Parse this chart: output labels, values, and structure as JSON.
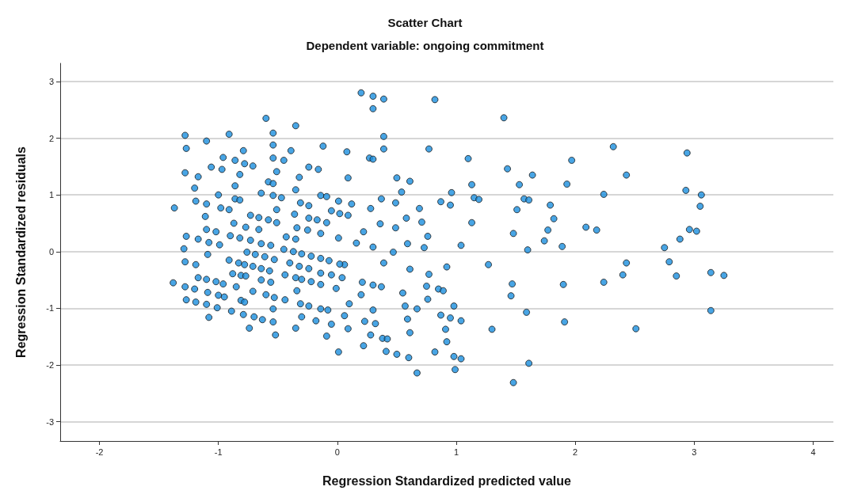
{
  "chart_data": {
    "type": "scatter",
    "title": "Scatter Chart",
    "subtitle": "Dependent variable: ongoing commitment",
    "xlabel": "Regression Standardized predicted value",
    "ylabel": "Regression Standardized residuals",
    "xlim": [
      -2.33,
      4.17
    ],
    "ylim": [
      -3.34,
      3.32
    ],
    "xticks": [
      -2,
      -1,
      0,
      1,
      2,
      3,
      4
    ],
    "yticks": [
      -3,
      -2,
      -1,
      0,
      1,
      2,
      3
    ],
    "grid": "y",
    "marker": "circle",
    "series": [
      {
        "color": "#1a8fde",
        "x": [
          2.32,
          2.94,
          1.97,
          2.43,
          1.93,
          2.24,
          2.93,
          3.06,
          3.05,
          1.79,
          1.82,
          1.77,
          2.09,
          2.18,
          1.89,
          2.96,
          3.02,
          2.88,
          2.75,
          2.43,
          2.79,
          2.4,
          2.85,
          3.14,
          3.25,
          1.9,
          2.24,
          3.14,
          1.91,
          2.51,
          1.74,
          1.4,
          0.2,
          0.3,
          0.39,
          0.3,
          0.82,
          0.39,
          0.39,
          0.08,
          0.27,
          0.3,
          0.77,
          1.1,
          1.43,
          1.64,
          1.53,
          1.13,
          0.09,
          0.5,
          0.61,
          0.54,
          0.96,
          0.37,
          0.49,
          0.87,
          0.95,
          1.15,
          1.19,
          1.57,
          1.61,
          0.12,
          0.28,
          0.69,
          0.09,
          1.51,
          0.36,
          0.58,
          0.71,
          1.13,
          0.49,
          0.22,
          0.76,
          1.48,
          0.16,
          0.3,
          0.59,
          0.73,
          1.04,
          1.6,
          0.47,
          0.39,
          1.27,
          0.92,
          0.61,
          0.06,
          0.77,
          0.21,
          0.3,
          0.37,
          0.75,
          0.85,
          0.89,
          1.47,
          0.2,
          0.55,
          1.46,
          0.76,
          0.1,
          0.3,
          0.57,
          0.67,
          0.98,
          1.59,
          0.06,
          0.23,
          0.32,
          0.59,
          0.87,
          0.95,
          1.04,
          0.09,
          0.28,
          0.61,
          0.91,
          1.3,
          0.22,
          0.38,
          0.42,
          0.92,
          0.41,
          0.5,
          0.6,
          0.82,
          0.98,
          1.04,
          1.61,
          0.67,
          0.99,
          1.48,
          -0.6,
          -0.35,
          -1.28,
          -0.91,
          -1.1,
          -0.54,
          -1.27,
          -0.54,
          -0.79,
          -0.39,
          -0.12,
          -0.96,
          -0.54,
          -0.86,
          -0.78,
          -0.71,
          -1.06,
          -0.97,
          -0.45,
          -0.24,
          -0.16,
          -1.28,
          -1.17,
          -0.82,
          -0.51,
          -0.32,
          -1.2,
          -0.86,
          -0.58,
          -0.54,
          -0.35,
          -1.19,
          -1.1,
          -1.0,
          -0.86,
          -0.82,
          -0.64,
          -0.54,
          -0.47,
          -0.31,
          -0.24,
          -0.14,
          -0.09,
          0.01,
          -1.37,
          -0.98,
          -0.91,
          -0.51,
          -0.05,
          0.02,
          -1.11,
          -0.73,
          -0.66,
          -0.58,
          -0.51,
          -0.36,
          -0.24,
          -0.17,
          -0.09,
          -0.87,
          -1.1,
          -1.02,
          -0.77,
          -0.66,
          -0.34,
          -0.25,
          -0.14,
          -1.27,
          -1.17,
          -1.08,
          -0.99,
          -0.9,
          -0.82,
          -0.73,
          -0.64,
          -0.56,
          -0.43,
          -0.35,
          0.01,
          -1.29,
          -1.09,
          -0.76,
          -0.69,
          -0.61,
          -0.53,
          -0.45,
          -0.37,
          -0.3,
          -0.22,
          -0.14,
          -0.07,
          0.02,
          -1.28,
          -1.19,
          -0.91,
          -0.83,
          -0.78,
          -0.71,
          -0.64,
          -0.57,
          -0.4,
          -0.32,
          -0.24,
          -0.14,
          -0.05,
          0.04,
          -1.38,
          -1.28,
          -1.2,
          -1.17,
          -1.1,
          -1.02,
          -0.96,
          -0.88,
          -0.81,
          -0.77,
          -0.64,
          -0.56,
          -0.44,
          -0.35,
          -0.3,
          -0.22,
          -0.14,
          -0.01,
          -0.85,
          -0.71,
          -0.34,
          -1.27,
          -1.19,
          -1.09,
          -1.0,
          -0.95,
          -1.1,
          -1.01,
          -0.89,
          -0.81,
          -0.78,
          -0.6,
          -0.53,
          -0.44,
          -0.31,
          -0.24,
          -0.14,
          -0.08,
          -1.08,
          -0.79,
          -0.7,
          -0.63,
          -0.54,
          -0.54,
          -0.3,
          -0.18,
          -0.05,
          -0.74,
          -0.35,
          -0.09,
          -0.52,
          0.01
        ],
        "values": [
          1.85,
          1.74,
          1.61,
          1.35,
          1.19,
          1.01,
          1.08,
          1.0,
          0.8,
          0.82,
          0.58,
          0.38,
          0.43,
          0.38,
          0.09,
          0.39,
          0.36,
          0.22,
          0.07,
          -0.2,
          -0.18,
          -0.41,
          -0.43,
          -0.37,
          -0.42,
          -0.58,
          -0.54,
          -1.04,
          -1.24,
          -1.36,
          0.19,
          2.36,
          2.8,
          2.74,
          2.69,
          2.52,
          2.68,
          2.03,
          1.81,
          1.76,
          1.65,
          1.63,
          1.81,
          1.64,
          1.46,
          1.35,
          1.18,
          1.18,
          1.3,
          1.3,
          1.24,
          1.05,
          1.04,
          0.93,
          0.86,
          0.88,
          0.82,
          0.95,
          0.92,
          0.93,
          0.91,
          0.84,
          0.76,
          0.76,
          0.64,
          0.74,
          0.49,
          0.59,
          0.52,
          0.51,
          0.42,
          0.35,
          0.27,
          0.32,
          0.15,
          0.08,
          0.14,
          0.07,
          0.11,
          0.03,
          -0.01,
          -0.2,
          -0.23,
          -0.27,
          -0.31,
          -0.23,
          -0.4,
          -0.54,
          -0.59,
          -0.62,
          -0.61,
          -0.66,
          -0.69,
          -0.57,
          -0.76,
          -0.73,
          -0.78,
          -0.84,
          -0.92,
          -1.03,
          -0.96,
          -1.01,
          -0.96,
          -1.07,
          -1.13,
          -1.23,
          -1.27,
          -1.19,
          -1.12,
          -1.17,
          -1.22,
          -1.36,
          -1.47,
          -1.43,
          -1.37,
          -1.37,
          -1.66,
          -1.53,
          -1.54,
          -1.59,
          -1.76,
          -1.81,
          -1.87,
          -1.77,
          -1.85,
          -1.89,
          -1.97,
          -2.14,
          -2.08,
          -2.31,
          2.35,
          2.22,
          2.05,
          2.07,
          1.95,
          2.09,
          1.82,
          1.88,
          1.78,
          1.78,
          1.86,
          1.66,
          1.65,
          1.61,
          1.55,
          1.51,
          1.49,
          1.45,
          1.61,
          1.49,
          1.45,
          1.39,
          1.32,
          1.36,
          1.41,
          1.31,
          1.12,
          1.16,
          1.23,
          1.2,
          1.09,
          0.89,
          0.84,
          1.0,
          0.93,
          0.91,
          1.03,
          0.99,
          0.95,
          0.86,
          0.81,
          0.99,
          0.97,
          0.89,
          0.77,
          0.77,
          0.74,
          0.74,
          0.72,
          0.67,
          0.62,
          0.64,
          0.6,
          0.56,
          0.51,
          0.66,
          0.59,
          0.56,
          0.51,
          0.5,
          0.39,
          0.35,
          0.43,
          0.39,
          0.42,
          0.38,
          0.32,
          0.27,
          0.22,
          0.16,
          0.12,
          0.28,
          0.24,
          0.2,
          0.14,
          0.11,
          0.26,
          0.22,
          0.24,
          0.05,
          -0.05,
          -0.01,
          -0.05,
          -0.09,
          -0.14,
          0.04,
          0.0,
          -0.04,
          -0.08,
          -0.12,
          -0.16,
          -0.22,
          -0.18,
          -0.23,
          -0.15,
          -0.2,
          -0.23,
          -0.26,
          -0.3,
          -0.34,
          -0.2,
          -0.26,
          -0.3,
          -0.38,
          -0.41,
          -0.46,
          -0.55,
          -0.62,
          -0.66,
          -0.46,
          -0.49,
          -0.53,
          -0.57,
          -0.39,
          -0.42,
          -0.43,
          -0.5,
          -0.54,
          -0.41,
          -0.46,
          -0.49,
          -0.53,
          -0.58,
          -0.65,
          -0.62,
          -0.7,
          -0.69,
          -0.85,
          -0.89,
          -0.72,
          -0.77,
          -0.8,
          -0.93,
          -0.99,
          -1.05,
          -0.86,
          -0.89,
          -0.76,
          -0.81,
          -0.85,
          -0.92,
          -0.96,
          -1.01,
          -1.03,
          -1.16,
          -1.11,
          -1.15,
          -1.2,
          -1.01,
          -1.24,
          -1.15,
          -1.22,
          -1.28,
          -1.35,
          -1.35,
          -1.49,
          -1.47,
          -1.77
        ]
      }
    ]
  }
}
